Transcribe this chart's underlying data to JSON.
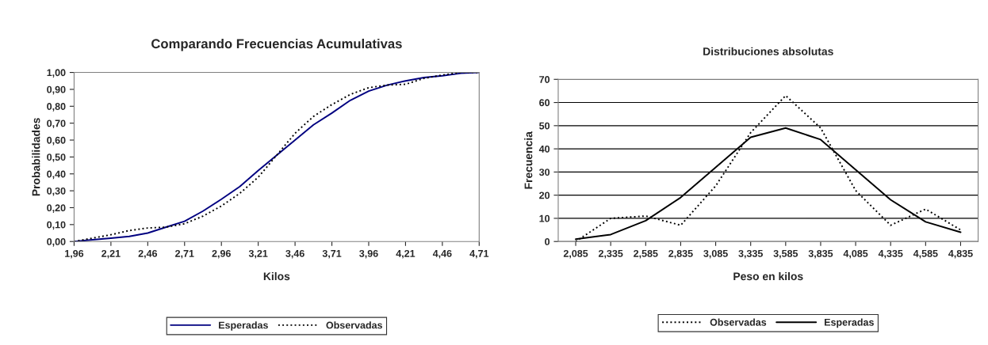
{
  "chart_data": [
    {
      "type": "line",
      "title": "Comparando Frecuencias Acumulativas",
      "xlabel": "Kilos",
      "ylabel": "Probabilidades",
      "x": [
        1.96,
        2.085,
        2.21,
        2.335,
        2.46,
        2.585,
        2.71,
        2.835,
        2.96,
        3.085,
        3.21,
        3.335,
        3.46,
        3.585,
        3.71,
        3.835,
        3.96,
        4.085,
        4.21,
        4.335,
        4.46,
        4.585,
        4.71
      ],
      "series": [
        {
          "name": "Esperadas",
          "color": "#000080",
          "line_style": "solid",
          "values": [
            0.0,
            0.01,
            0.02,
            0.03,
            0.05,
            0.085,
            0.12,
            0.18,
            0.25,
            0.325,
            0.42,
            0.51,
            0.6,
            0.69,
            0.76,
            0.835,
            0.89,
            0.925,
            0.95,
            0.97,
            0.98,
            0.995,
            1.0
          ]
        },
        {
          "name": "Observadas",
          "color": "#000000",
          "line_style": "dotted",
          "values": [
            0.0,
            0.02,
            0.04,
            0.065,
            0.08,
            0.085,
            0.105,
            0.15,
            0.21,
            0.285,
            0.38,
            0.51,
            0.64,
            0.74,
            0.81,
            0.87,
            0.91,
            0.925,
            0.93,
            0.965,
            0.985,
            1.0,
            1.0
          ]
        }
      ],
      "xlim": [
        1.96,
        4.71
      ],
      "xticks": [
        {
          "value": 1.96,
          "label": "1,96"
        },
        {
          "value": 2.21,
          "label": "2,21"
        },
        {
          "value": 2.46,
          "label": "2,46"
        },
        {
          "value": 2.71,
          "label": "2,71"
        },
        {
          "value": 2.96,
          "label": "2,96"
        },
        {
          "value": 3.21,
          "label": "3,21"
        },
        {
          "value": 3.46,
          "label": "3,46"
        },
        {
          "value": 3.71,
          "label": "3,71"
        },
        {
          "value": 3.96,
          "label": "3,96"
        },
        {
          "value": 4.21,
          "label": "4,21"
        },
        {
          "value": 4.46,
          "label": "4,46"
        },
        {
          "value": 4.71,
          "label": "4,71"
        }
      ],
      "ylim": [
        0,
        1
      ],
      "yticks": [
        {
          "value": 0,
          "label": "0,00"
        },
        {
          "value": 0.1,
          "label": "0,10"
        },
        {
          "value": 0.2,
          "label": "0,20"
        },
        {
          "value": 0.3,
          "label": "0,30"
        },
        {
          "value": 0.4,
          "label": "0,40"
        },
        {
          "value": 0.5,
          "label": "0,50"
        },
        {
          "value": 0.6,
          "label": "0,60"
        },
        {
          "value": 0.7,
          "label": "0,70"
        },
        {
          "value": 0.8,
          "label": "0,80"
        },
        {
          "value": 0.9,
          "label": "0,90"
        },
        {
          "value": 1,
          "label": "1,00"
        }
      ],
      "grid": false,
      "legend": "bottom"
    },
    {
      "type": "line",
      "title": "Distribuciones absolutas",
      "xlabel": "Peso en kilos",
      "ylabel": "Frecuencia",
      "categories": [
        "2,085",
        "2,335",
        "2,585",
        "2,835",
        "3,085",
        "3,335",
        "3,585",
        "3,835",
        "4,085",
        "4,335",
        "4,585",
        "4,835"
      ],
      "series": [
        {
          "name": "Observadas",
          "color": "#000000",
          "line_style": "dotted",
          "values": [
            0,
            10,
            11,
            7,
            24,
            47,
            63,
            49,
            22,
            7,
            14,
            5
          ]
        },
        {
          "name": "Esperadas",
          "color": "#000000",
          "line_style": "solid",
          "values": [
            1,
            3,
            9,
            19,
            32,
            45,
            49,
            44,
            31,
            18,
            8.5,
            4
          ]
        }
      ],
      "ylim": [
        0,
        70
      ],
      "yticks": [
        0,
        10,
        20,
        30,
        40,
        50,
        60,
        70
      ],
      "grid": "y",
      "legend": "bottom"
    }
  ]
}
